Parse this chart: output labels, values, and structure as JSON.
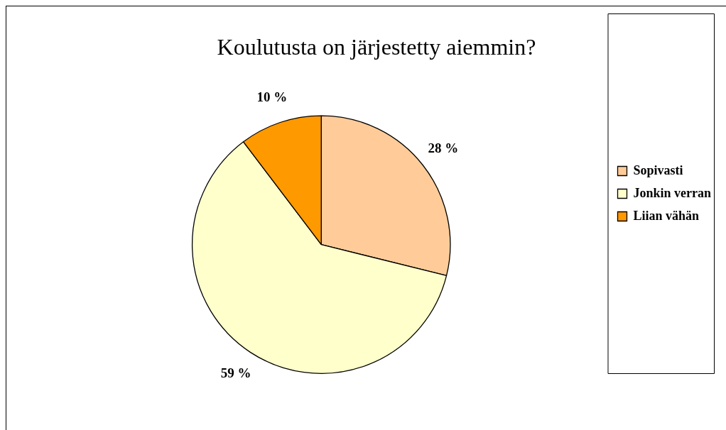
{
  "chart_data": {
    "type": "pie",
    "title": "Koulutusta on järjestetty aiemmin?",
    "categories": [
      "Sopivasti",
      "Jonkin verran",
      "Liian vähän"
    ],
    "values": [
      28,
      59,
      10
    ],
    "colors": [
      "#ffcc99",
      "#ffffcc",
      "#ff9900"
    ],
    "value_labels": [
      "28 %",
      "59 %",
      "10 %"
    ],
    "legend": "right"
  }
}
